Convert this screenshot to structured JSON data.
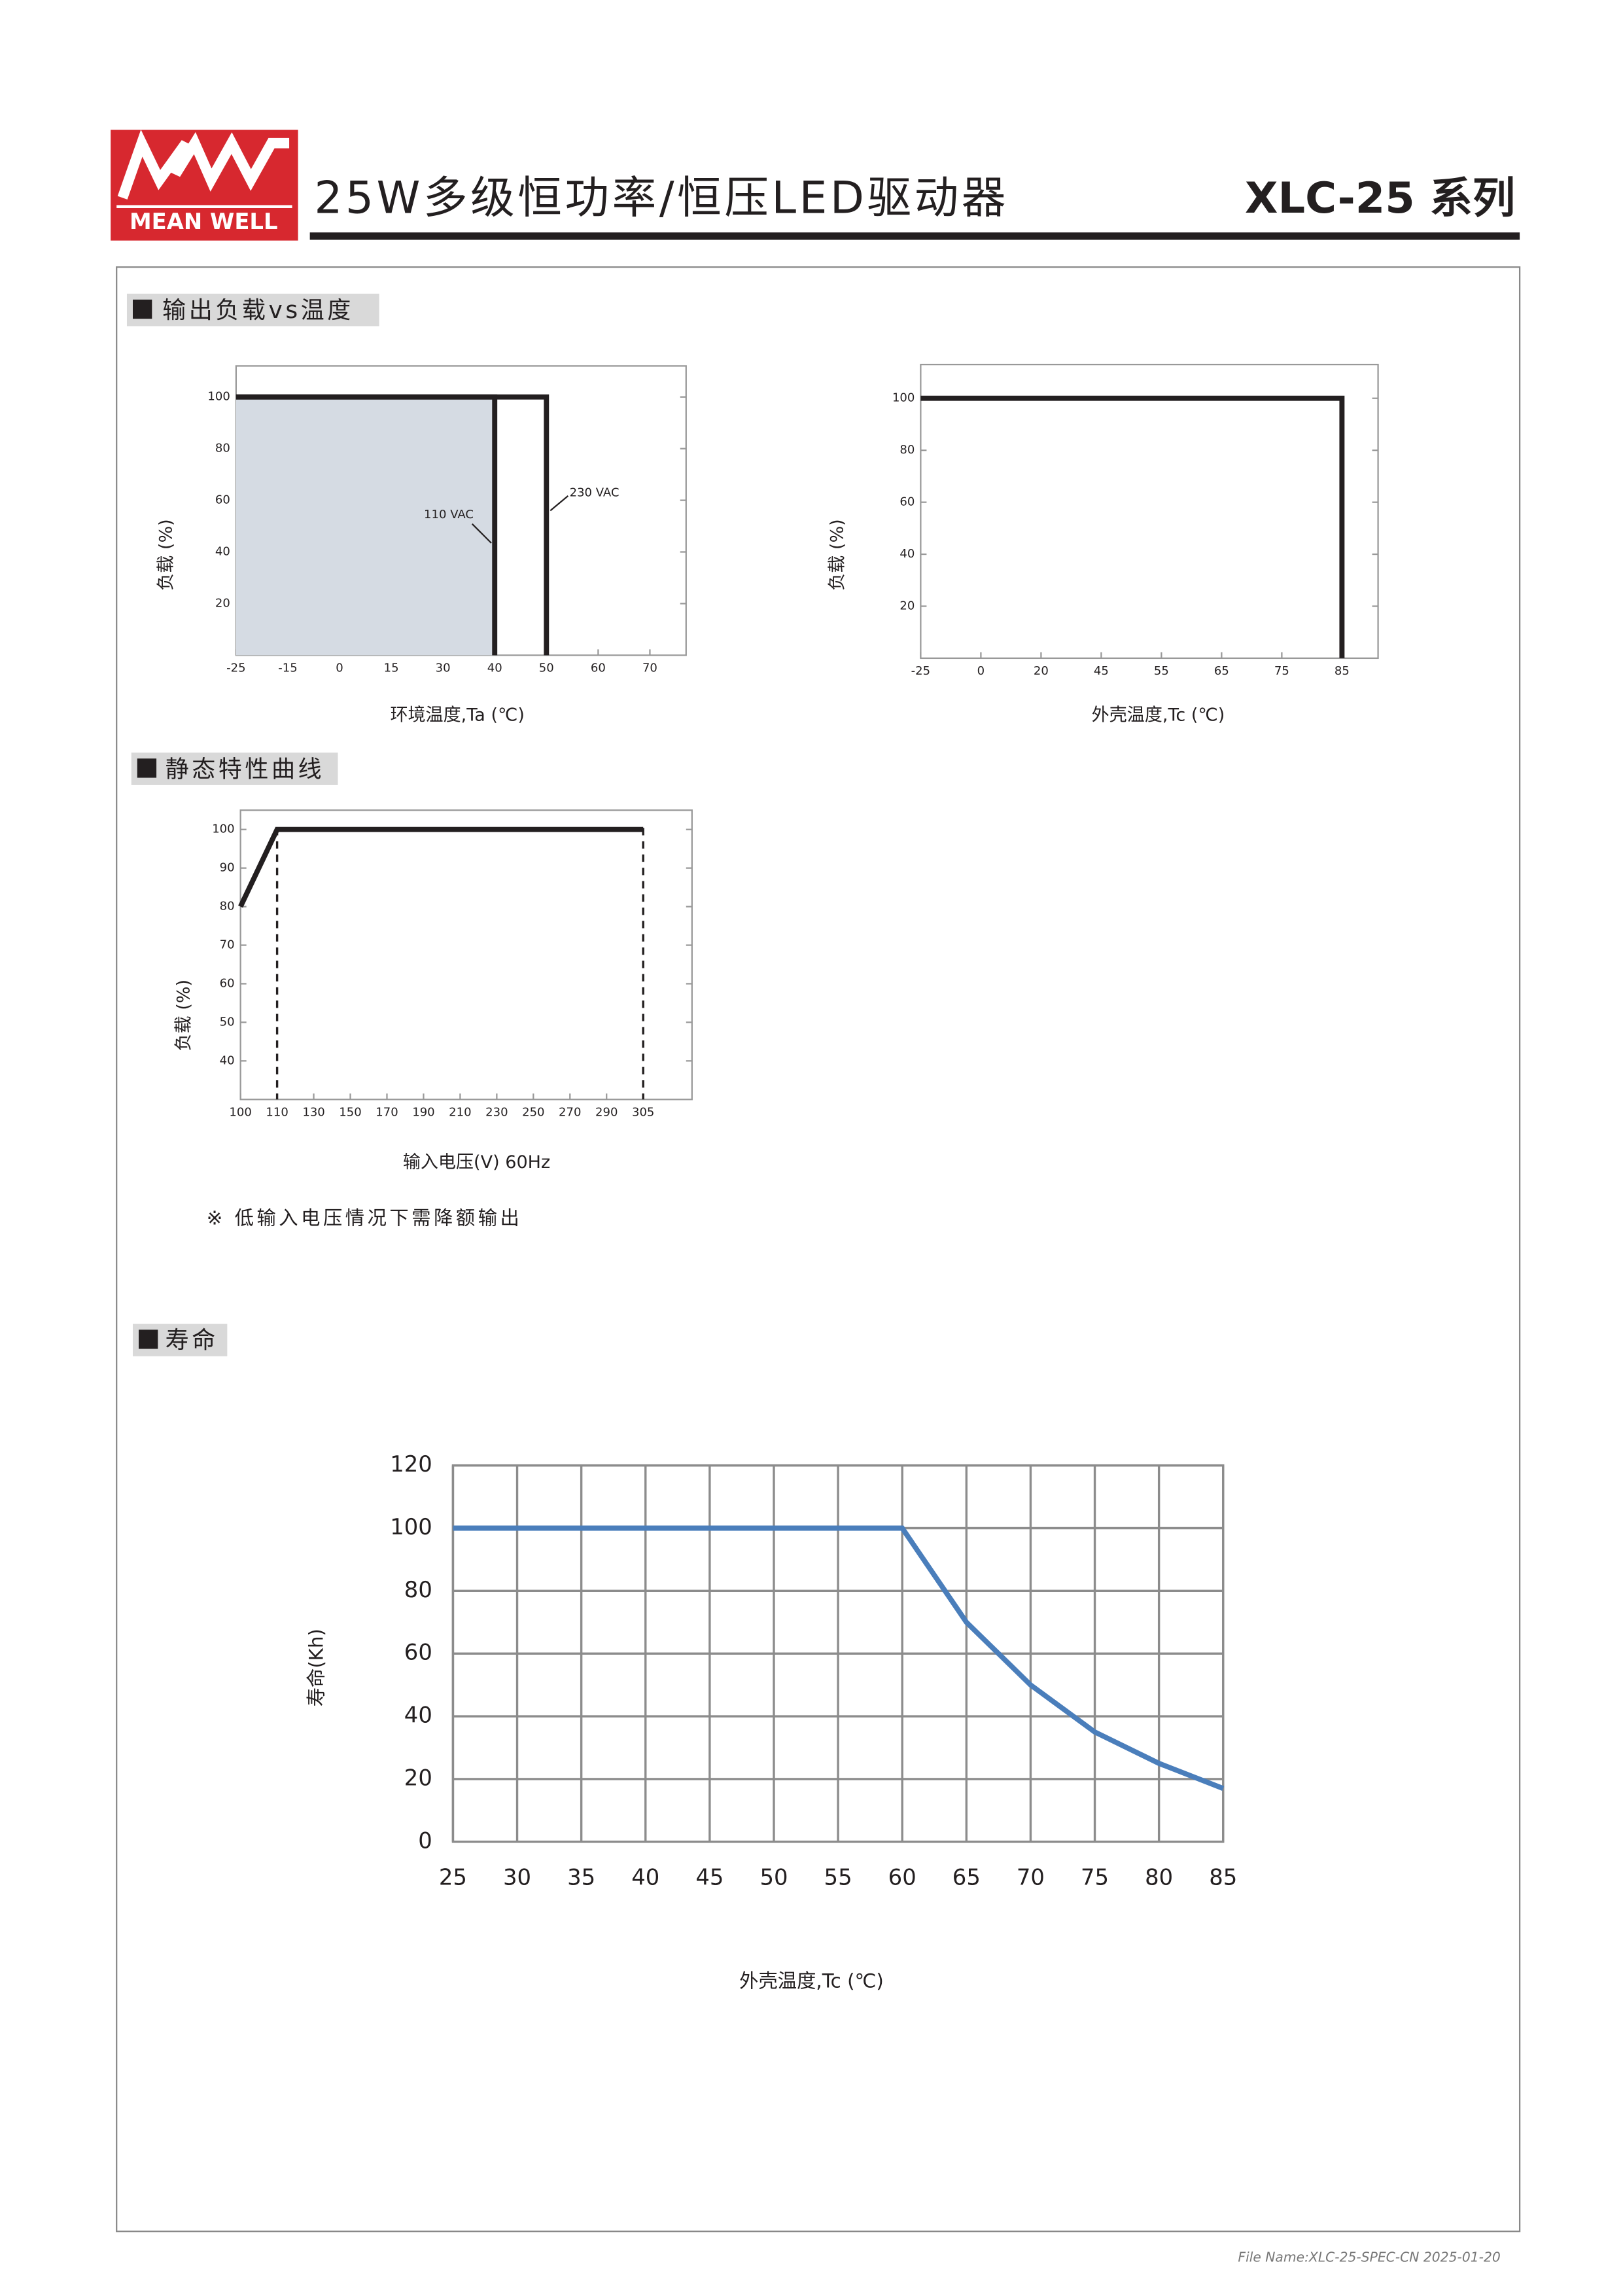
{
  "header": {
    "logo_text": "MEAN WELL",
    "title": "25W多级恒功率/恒压LED驱动器",
    "model": "XLC-25 系列"
  },
  "sections": [
    "输出负载vs温度",
    "静态特性曲线",
    "寿命"
  ],
  "note": "※ 低输入电压情况下需降额输出",
  "footer": "File Name:XLC-25-SPEC-CN  2025-01-20",
  "chart_data": [
    {
      "type": "line",
      "ylabel": "负载 (%)",
      "xlabel": "环境温度,Ta (℃)",
      "xlim": [
        -25,
        77
      ],
      "xticks": [
        -25,
        -15,
        0,
        15,
        30,
        40,
        50,
        60,
        70
      ],
      "ylim": [
        0,
        112
      ],
      "yticks": [
        20,
        40,
        60,
        80,
        100
      ],
      "series": [
        {
          "name": "110 VAC",
          "color": "#231f20",
          "area_color": "#d5dbe3",
          "x": [
            -25,
            40,
            40
          ],
          "values": [
            100,
            100,
            0
          ]
        },
        {
          "name": "230 VAC",
          "color": "#231f20",
          "x": [
            -25,
            50,
            50
          ],
          "values": [
            100,
            100,
            0
          ]
        }
      ]
    },
    {
      "type": "line",
      "ylabel": "负载 (%)",
      "xlabel": "外壳温度,Tc (℃)",
      "xlim": [
        -25,
        91
      ],
      "xticks": [
        -25,
        0,
        20,
        45,
        55,
        65,
        75,
        85
      ],
      "ylim": [
        0,
        113
      ],
      "yticks": [
        20,
        40,
        60,
        80,
        100
      ],
      "series": [
        {
          "color": "#231f20",
          "x": [
            -25,
            85,
            85
          ],
          "values": [
            100,
            100,
            0
          ]
        }
      ]
    },
    {
      "type": "line",
      "ylabel": "负载 (%)",
      "xlabel": "输入电压(V) 60Hz",
      "xlim": [
        100,
        325
      ],
      "xticks": [
        100,
        110,
        130,
        150,
        170,
        190,
        210,
        230,
        250,
        270,
        290,
        305
      ],
      "ylim": [
        30,
        105
      ],
      "yticks": [
        40,
        50,
        60,
        70,
        80,
        90,
        100
      ],
      "vlines": [
        110,
        305
      ],
      "series": [
        {
          "color": "#231f20",
          "x": [
            100,
            110,
            305
          ],
          "values": [
            80,
            100,
            100
          ]
        }
      ]
    },
    {
      "type": "line",
      "ylabel": "寿命(Kh)",
      "xlabel": "外壳温度,Tc (℃)",
      "grid": true,
      "x": [
        25,
        30,
        35,
        40,
        45,
        50,
        55,
        60,
        65,
        70,
        75,
        80,
        85
      ],
      "xlim": [
        25,
        85
      ],
      "xticks": [
        25,
        30,
        35,
        40,
        45,
        50,
        55,
        60,
        65,
        70,
        75,
        80,
        85
      ],
      "ylim": [
        0,
        120
      ],
      "yticks": [
        0,
        20,
        40,
        60,
        80,
        100,
        120
      ],
      "series": [
        {
          "color": "#4a7ebb",
          "values": [
            100,
            100,
            100,
            100,
            100,
            100,
            100,
            100,
            70,
            50,
            35,
            25,
            17
          ]
        }
      ]
    }
  ]
}
